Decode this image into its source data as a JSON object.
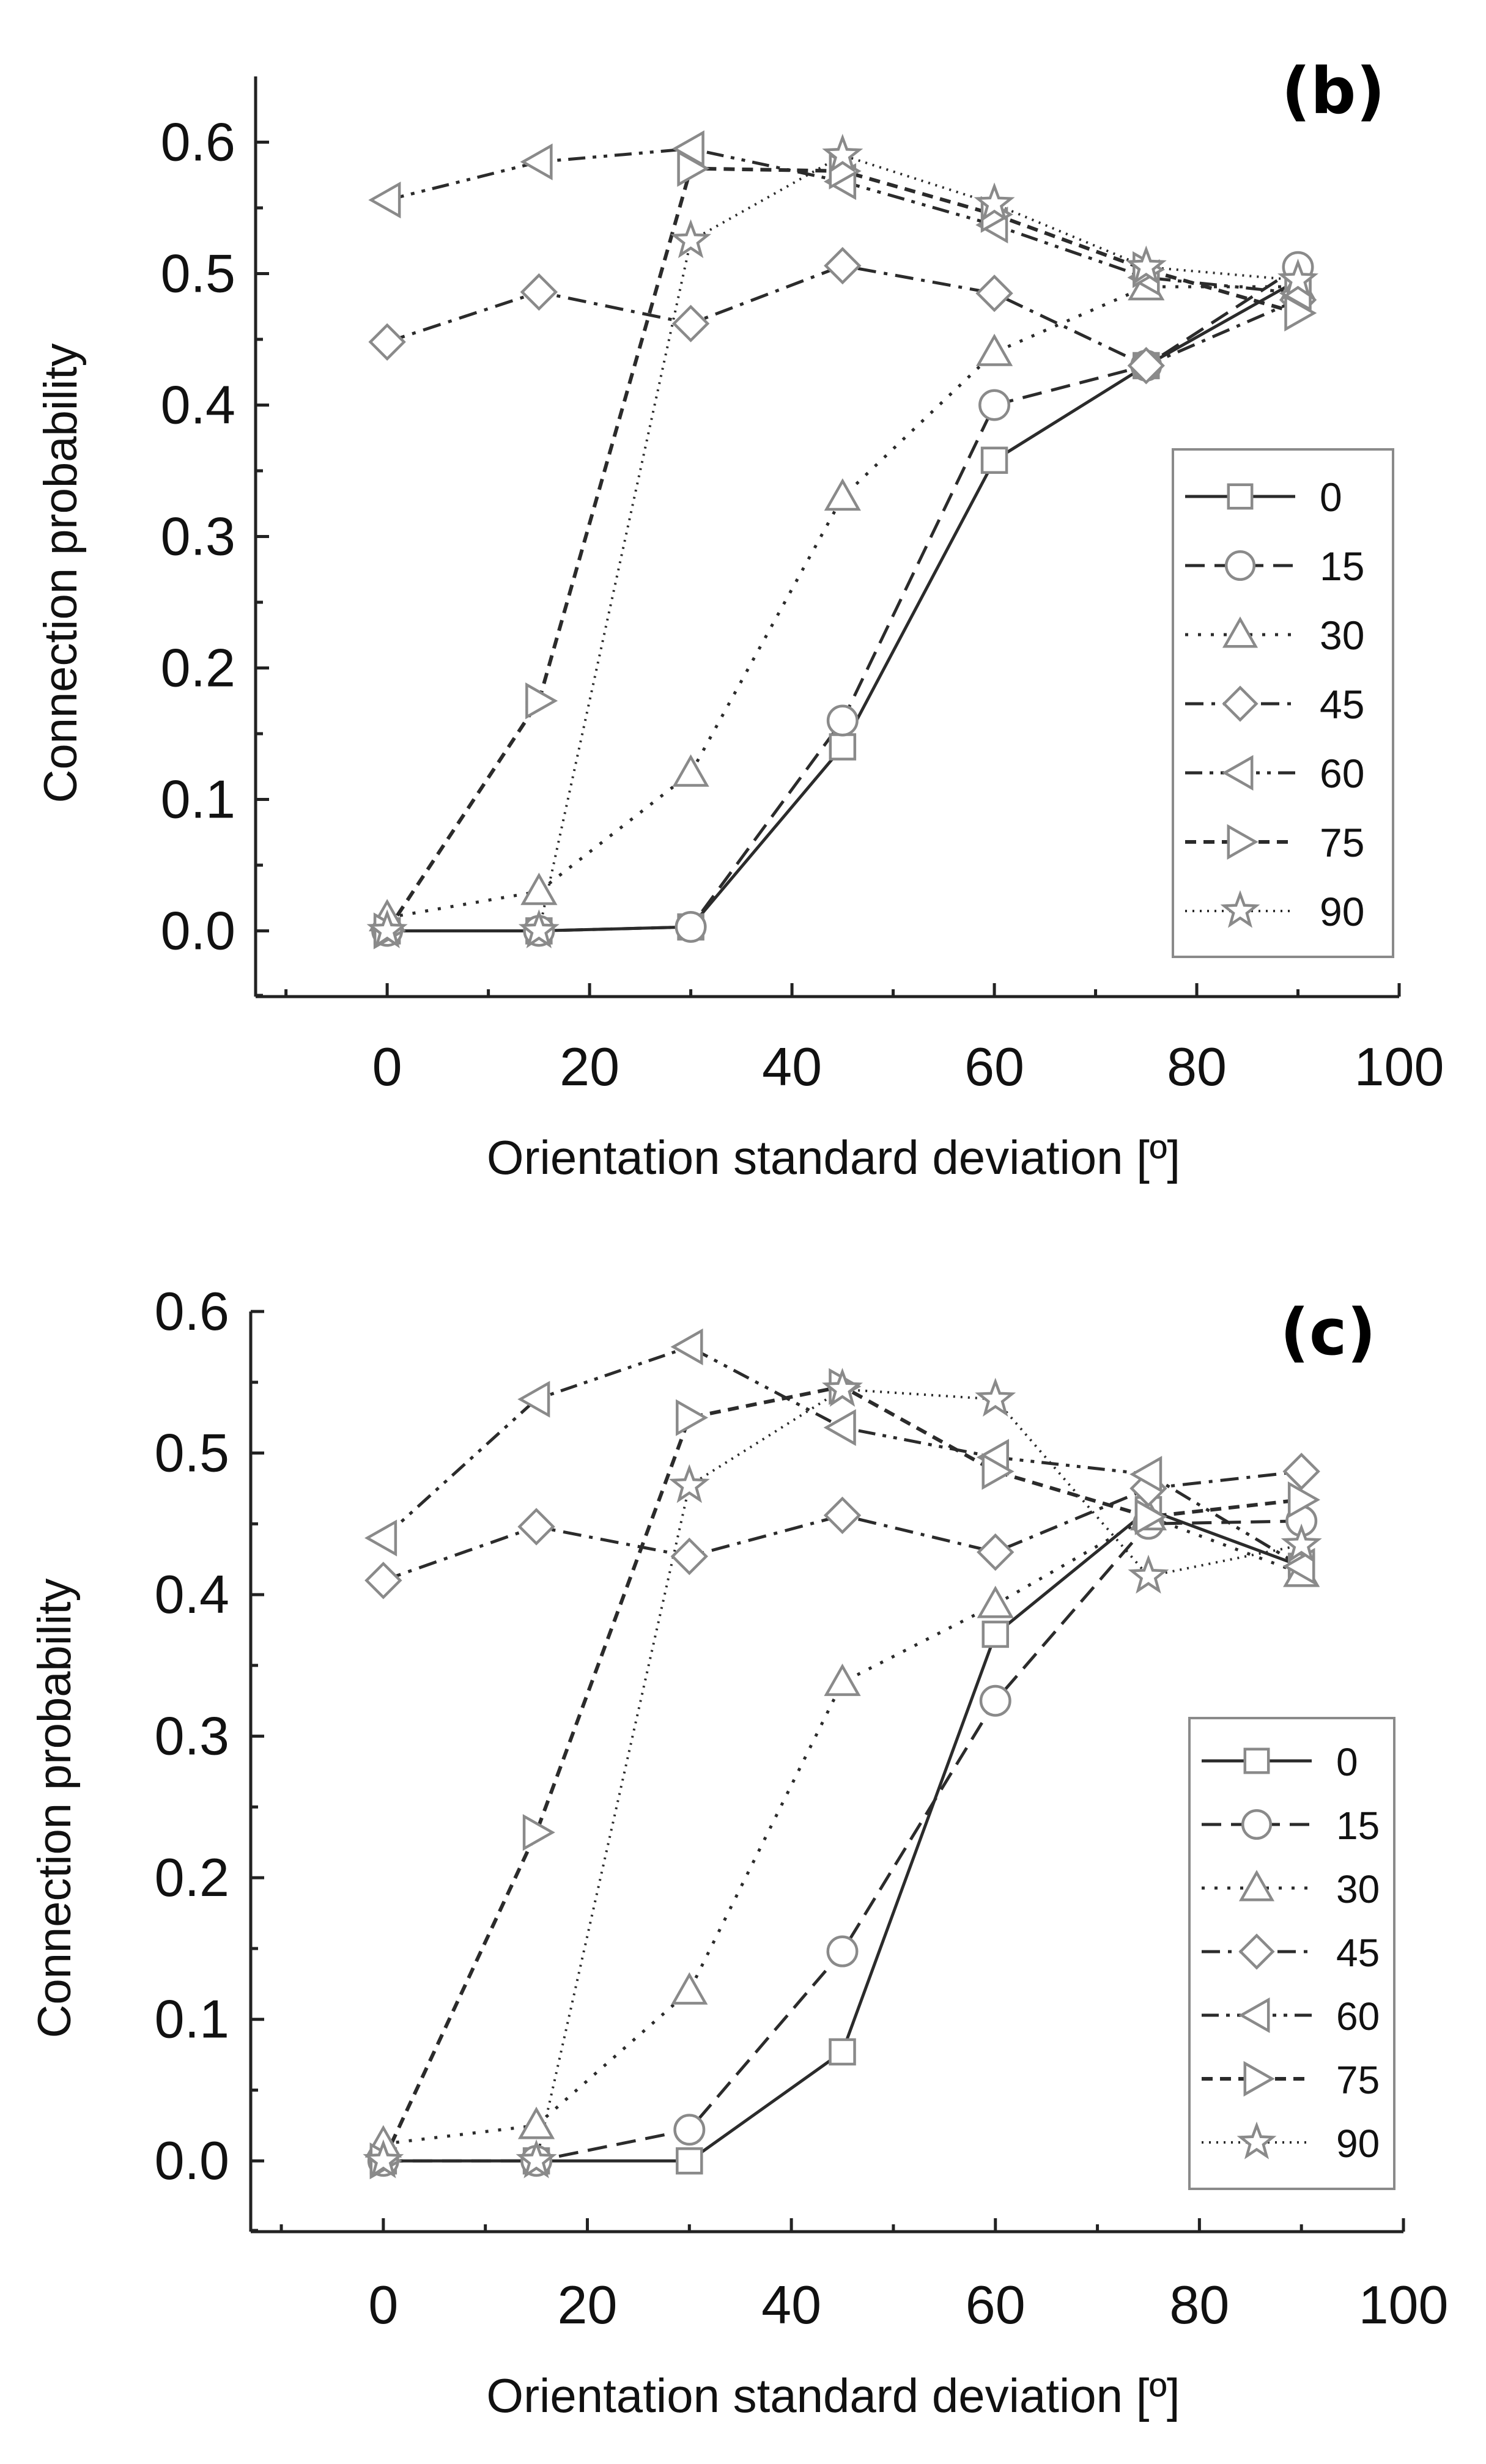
{
  "chart_data": [
    {
      "type": "line",
      "panel_label": "(b)",
      "xlabel": "Orientation standard deviation [º]",
      "ylabel": "Connection probability",
      "xlim": [
        -13,
        100
      ],
      "ylim": [
        -0.05,
        0.65
      ],
      "x_ticks": [
        "0",
        "20",
        "40",
        "60",
        "80",
        "100"
      ],
      "y_ticks": [
        "0.0",
        "0.1",
        "0.2",
        "0.3",
        "0.4",
        "0.5",
        "0.6"
      ],
      "x": [
        0,
        15,
        30,
        45,
        60,
        75,
        90
      ],
      "legend_position": "right-middle",
      "series": [
        {
          "name": "0",
          "marker": "square",
          "dash": "solid",
          "values": [
            0.0,
            0.0,
            0.003,
            0.14,
            0.358,
            0.43,
            0.495
          ]
        },
        {
          "name": "15",
          "marker": "circle",
          "dash": "dash",
          "values": [
            0.0,
            0.0,
            0.003,
            0.16,
            0.4,
            0.43,
            0.505
          ]
        },
        {
          "name": "30",
          "marker": "triangle-up",
          "dash": "dot",
          "values": [
            0.01,
            0.03,
            0.12,
            0.33,
            0.44,
            0.49,
            0.49
          ]
        },
        {
          "name": "45",
          "marker": "diamond",
          "dash": "dash-dot",
          "values": [
            0.448,
            0.486,
            0.462,
            0.506,
            0.485,
            0.43,
            0.48
          ]
        },
        {
          "name": "60",
          "marker": "triangle-left",
          "dash": "dash-dot-dot",
          "values": [
            0.556,
            0.585,
            0.595,
            0.57,
            0.537,
            0.497,
            0.485
          ]
        },
        {
          "name": "75",
          "marker": "triangle-right",
          "dash": "short-dash",
          "values": [
            0.0,
            0.175,
            0.58,
            0.578,
            0.545,
            0.503,
            0.47
          ]
        },
        {
          "name": "90",
          "marker": "star",
          "dash": "fine-dot",
          "values": [
            0.0,
            0.0,
            0.525,
            0.59,
            0.553,
            0.505,
            0.495
          ]
        }
      ]
    },
    {
      "type": "line",
      "panel_label": "(c)",
      "xlabel": "Orientation standard deviation [º]",
      "ylabel": "Connection probability",
      "xlim": [
        -13,
        100
      ],
      "ylim": [
        -0.05,
        0.6
      ],
      "x_ticks": [
        "0",
        "20",
        "40",
        "60",
        "80",
        "100"
      ],
      "y_ticks": [
        "0.0",
        "0.1",
        "0.2",
        "0.3",
        "0.4",
        "0.5",
        "0.6"
      ],
      "x": [
        0,
        15,
        30,
        45,
        60,
        75,
        90
      ],
      "legend_position": "right-lower",
      "series": [
        {
          "name": "0",
          "marker": "square",
          "dash": "solid",
          "values": [
            0.0,
            0.0,
            0.0,
            0.077,
            0.372,
            0.46,
            0.42
          ]
        },
        {
          "name": "15",
          "marker": "circle",
          "dash": "dash",
          "values": [
            0.0,
            0.0,
            0.022,
            0.148,
            0.325,
            0.45,
            0.452
          ]
        },
        {
          "name": "30",
          "marker": "triangle-up",
          "dash": "dot",
          "values": [
            0.012,
            0.025,
            0.12,
            0.338,
            0.393,
            0.455,
            0.415
          ]
        },
        {
          "name": "45",
          "marker": "diamond",
          "dash": "dash-dot",
          "values": [
            0.41,
            0.448,
            0.427,
            0.456,
            0.43,
            0.475,
            0.487
          ]
        },
        {
          "name": "60",
          "marker": "triangle-left",
          "dash": "dash-dot-dot",
          "values": [
            0.44,
            0.538,
            0.575,
            0.518,
            0.497,
            0.485,
            0.42
          ]
        },
        {
          "name": "75",
          "marker": "triangle-right",
          "dash": "short-dash",
          "values": [
            0.0,
            0.232,
            0.525,
            0.547,
            0.487,
            0.455,
            0.467
          ]
        },
        {
          "name": "90",
          "marker": "star",
          "dash": "fine-dot",
          "values": [
            0.0,
            0.0,
            0.477,
            0.545,
            0.538,
            0.413,
            0.435
          ]
        }
      ]
    }
  ]
}
